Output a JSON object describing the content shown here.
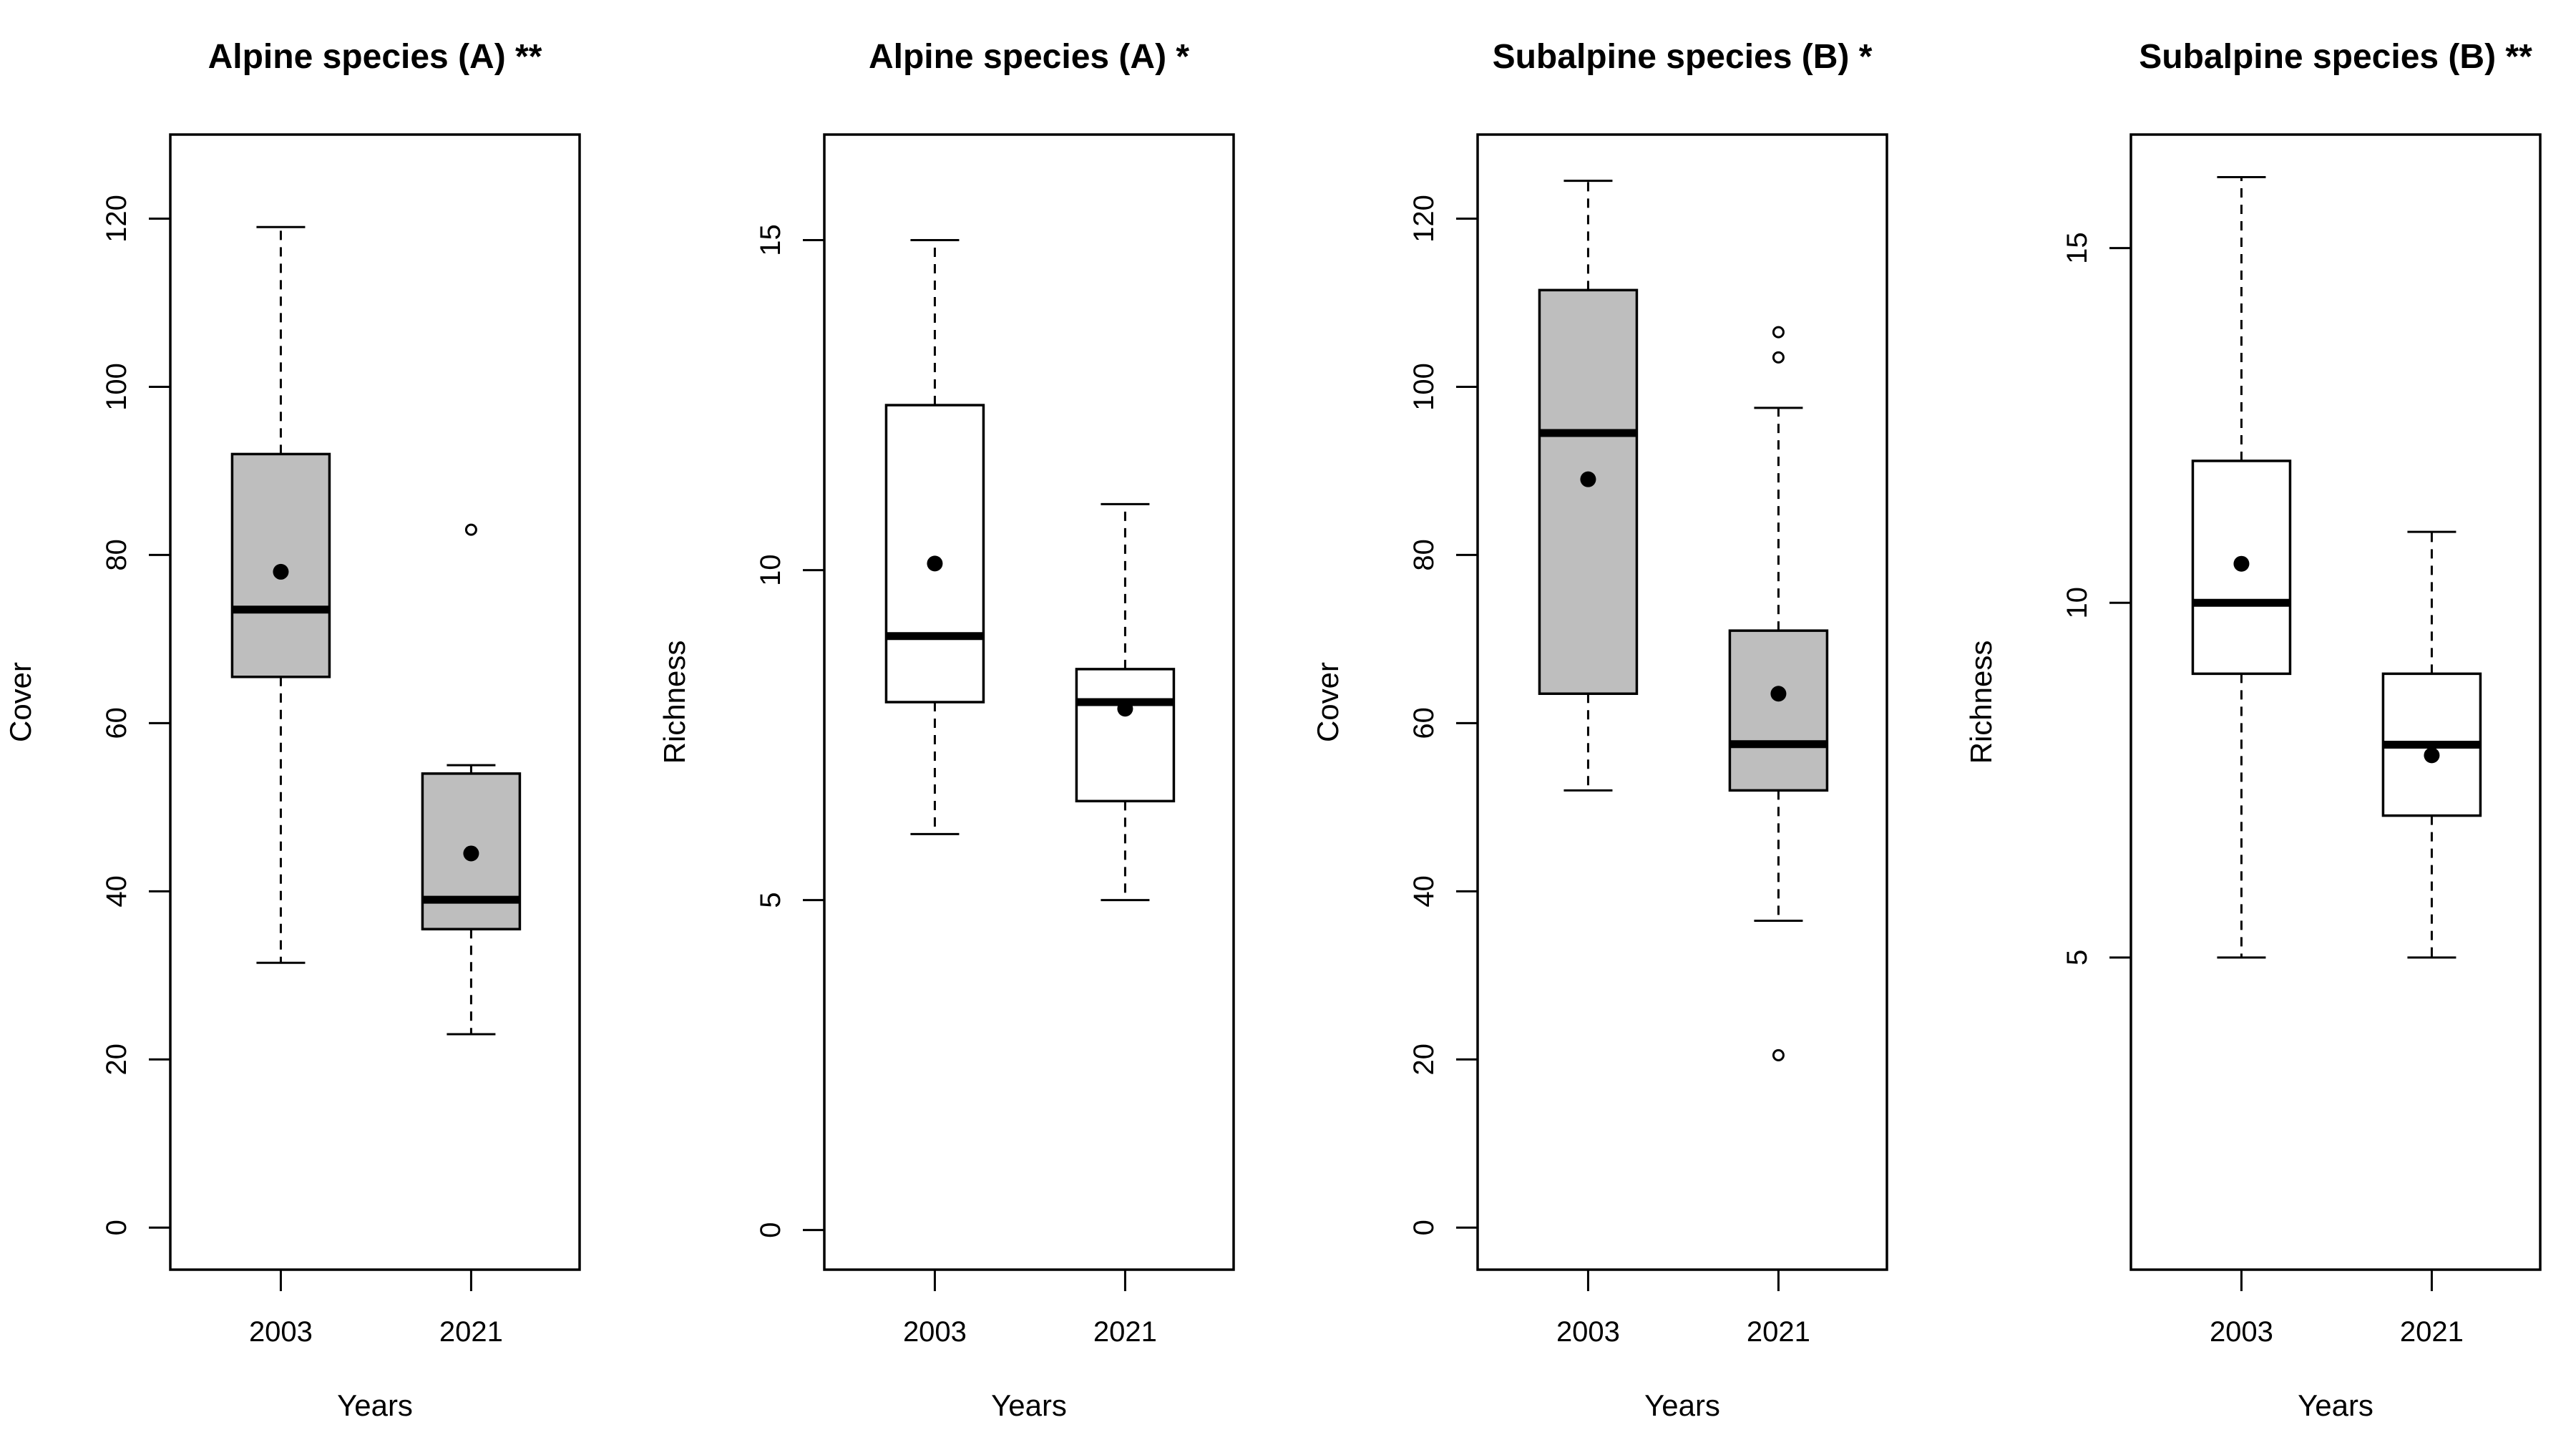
{
  "chart_data": [
    {
      "type": "boxplot",
      "title": "Alpine species (A) **",
      "xlabel": "Years",
      "ylabel": "Cover",
      "ylim": [
        -5,
        130
      ],
      "yticks": [
        0,
        20,
        40,
        60,
        80,
        100,
        120
      ],
      "categories": [
        "2003",
        "2021"
      ],
      "boxes": [
        {
          "category": "2003",
          "fill": "#bebebe",
          "whisker_low": 31.5,
          "q1": 65.5,
          "median": 73.5,
          "q3": 92,
          "whisker_high": 119,
          "mean": 78,
          "outliers": []
        },
        {
          "category": "2021",
          "fill": "#bebebe",
          "whisker_low": 23,
          "q1": 35.5,
          "median": 39,
          "q3": 54,
          "whisker_high": 55,
          "mean": 44.5,
          "outliers": [
            83
          ]
        }
      ]
    },
    {
      "type": "boxplot",
      "title": "Alpine species (A) *",
      "xlabel": "Years",
      "ylabel": "Richness",
      "ylim": [
        -0.6,
        16.6
      ],
      "yticks": [
        0,
        5,
        10,
        15
      ],
      "categories": [
        "2003",
        "2021"
      ],
      "boxes": [
        {
          "category": "2003",
          "fill": "#ffffff",
          "whisker_low": 6,
          "q1": 8,
          "median": 9,
          "q3": 12.5,
          "whisker_high": 15,
          "mean": 10.1,
          "outliers": []
        },
        {
          "category": "2021",
          "fill": "#ffffff",
          "whisker_low": 5,
          "q1": 6.5,
          "median": 8,
          "q3": 8.5,
          "whisker_high": 11,
          "mean": 7.9,
          "outliers": []
        }
      ]
    },
    {
      "type": "boxplot",
      "title": "Subalpine species (B) *",
      "xlabel": "Years",
      "ylabel": "Cover",
      "ylim": [
        -5,
        130
      ],
      "yticks": [
        0,
        20,
        40,
        60,
        80,
        100,
        120
      ],
      "categories": [
        "2003",
        "2021"
      ],
      "boxes": [
        {
          "category": "2003",
          "fill": "#bebebe",
          "whisker_low": 52,
          "q1": 63.5,
          "median": 94.5,
          "q3": 111.5,
          "whisker_high": 124.5,
          "mean": 89,
          "outliers": []
        },
        {
          "category": "2021",
          "fill": "#bebebe",
          "whisker_low": 36.5,
          "q1": 52,
          "median": 57.5,
          "q3": 71,
          "whisker_high": 97.5,
          "mean": 63.5,
          "outliers": [
            20.5,
            103.5,
            106.5
          ]
        }
      ]
    },
    {
      "type": "boxplot",
      "title": "Subalpine species (B) **",
      "xlabel": "Years",
      "ylabel": "Richness",
      "ylim": [
        0.6,
        16.6
      ],
      "yticks": [
        5,
        10,
        15
      ],
      "categories": [
        "2003",
        "2021"
      ],
      "boxes": [
        {
          "category": "2003",
          "fill": "#ffffff",
          "whisker_low": 5,
          "q1": 9,
          "median": 10,
          "q3": 12,
          "whisker_high": 16,
          "mean": 10.55,
          "outliers": []
        },
        {
          "category": "2021",
          "fill": "#ffffff",
          "whisker_low": 5,
          "q1": 7,
          "median": 8,
          "q3": 9,
          "whisker_high": 11,
          "mean": 7.85,
          "outliers": []
        }
      ]
    }
  ]
}
